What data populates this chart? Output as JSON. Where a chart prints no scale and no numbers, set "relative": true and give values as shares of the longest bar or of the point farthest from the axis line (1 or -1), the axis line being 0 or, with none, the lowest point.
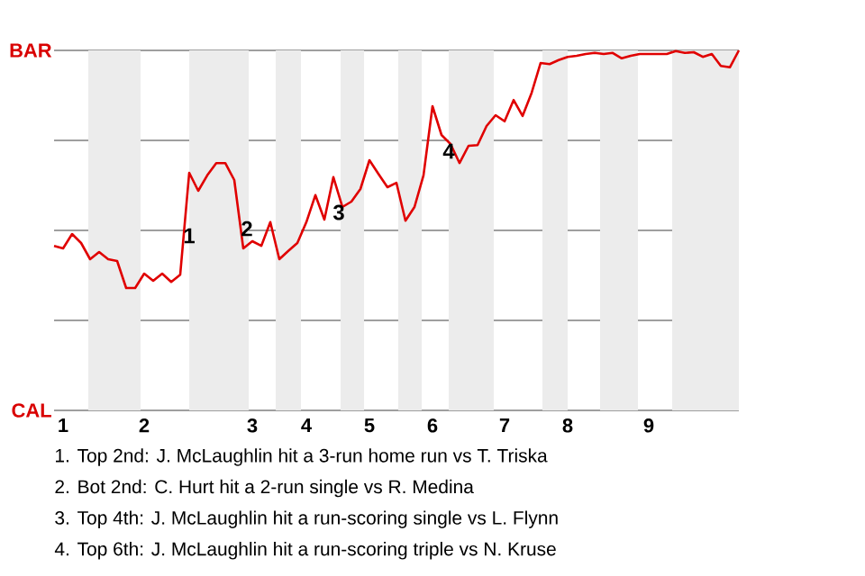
{
  "chart_data": {
    "type": "line",
    "relative": true,
    "categories": [
      null,
      "1",
      null,
      null,
      null,
      null,
      null,
      null,
      null,
      null,
      "2",
      null,
      null,
      null,
      null,
      null,
      null,
      null,
      null,
      null,
      null,
      null,
      "3",
      null,
      null,
      null,
      null,
      null,
      "4",
      null,
      null,
      null,
      null,
      null,
      null,
      "5",
      null,
      null,
      null,
      null,
      null,
      null,
      "6",
      null,
      null,
      null,
      null,
      null,
      null,
      null,
      "7",
      null,
      null,
      null,
      null,
      null,
      null,
      "8",
      null,
      null,
      null,
      null,
      null,
      null,
      null,
      null,
      "9",
      null,
      null,
      null,
      null,
      null,
      null,
      null,
      null,
      null,
      null
    ],
    "series": [
      {
        "color": "#e00000",
        "values": [
          0.457,
          0.45,
          0.49,
          0.465,
          0.42,
          0.44,
          0.42,
          0.415,
          0.34,
          0.34,
          0.38,
          0.36,
          0.38,
          0.357,
          0.377,
          0.66,
          0.61,
          0.653,
          0.687,
          0.687,
          0.64,
          0.45,
          0.47,
          0.457,
          0.523,
          0.42,
          0.443,
          0.465,
          0.523,
          0.598,
          0.53,
          0.648,
          0.565,
          0.58,
          0.615,
          0.695,
          0.657,
          0.62,
          0.632,
          0.527,
          0.565,
          0.653,
          0.845,
          0.765,
          0.74,
          0.687,
          0.735,
          0.737,
          0.79,
          0.82,
          0.803,
          0.862,
          0.818,
          0.882,
          0.965,
          0.962,
          0.973,
          0.982,
          0.985,
          0.99,
          0.993,
          0.99,
          0.993,
          0.978,
          0.985,
          0.99,
          0.99,
          0.99,
          0.99,
          0.998,
          0.993,
          0.995,
          0.982,
          0.99,
          0.957,
          0.953,
          1
        ]
      }
    ],
    "grid": "y",
    "marker": "none",
    "annotations": [
      "BAR",
      "CAL",
      {
        "text": "1",
        "y": 0.485
      },
      {
        "text": "2",
        "y": 0.505
      },
      {
        "text": "3",
        "y": 0.55
      },
      {
        "text": "4",
        "y": 0.72
      },
      "1. Top 2nd: J. McLaughlin hit a 3-run home run vs T. Triska",
      "2. Bot 2nd: C. Hurt hit a 2-run single vs R. Medina",
      "3. Top 4th: J. McLaughlin hit a run-scoring single vs L. Flynn",
      "4. Top 6th: J. McLaughlin hit a run-scoring triple vs N. Kruse"
    ]
  }
}
